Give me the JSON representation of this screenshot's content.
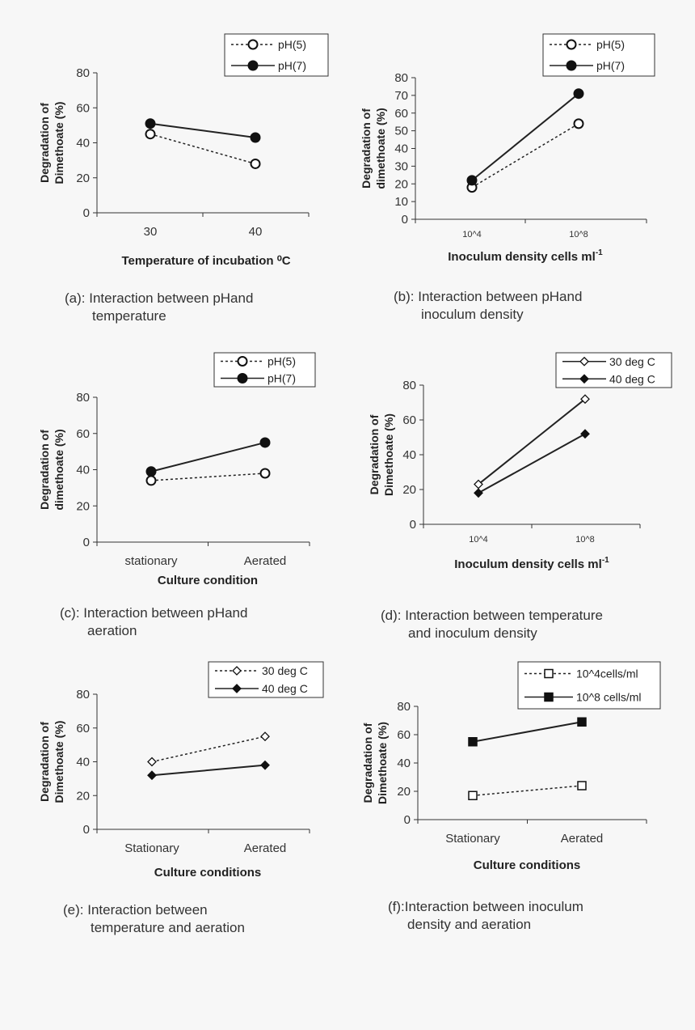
{
  "chart_data": [
    {
      "id": "a",
      "type": "line",
      "categories": [
        "30",
        "40"
      ],
      "series": [
        {
          "name": "pH(5)",
          "values": [
            45,
            28
          ],
          "style": "dashed",
          "marker": "circle-open"
        },
        {
          "name": "pH(7)",
          "values": [
            51,
            43
          ],
          "style": "solid",
          "marker": "circle-filled"
        }
      ],
      "ylabel": [
        "Degradation of",
        "Dimethoate (%)"
      ],
      "xlabel": "Temperature of incubation ⁰C",
      "ylim": [
        0,
        80
      ],
      "yticks": [
        0,
        20,
        40,
        60,
        80
      ],
      "caption": [
        "(a): Interaction between pHand",
        "temperature"
      ]
    },
    {
      "id": "b",
      "type": "line",
      "categories": [
        "10^4",
        "10^8"
      ],
      "series": [
        {
          "name": "pH(5)",
          "values": [
            18,
            54
          ],
          "style": "dashed",
          "marker": "circle-open"
        },
        {
          "name": "pH(7)",
          "values": [
            22,
            71
          ],
          "style": "solid",
          "marker": "circle-filled"
        }
      ],
      "ylabel": [
        "Degradation of",
        "dimethoate (%)"
      ],
      "xlabel": "Inoculum density cells ml",
      "xlabel_sup": "-1",
      "ylim": [
        0,
        80
      ],
      "yticks": [
        0,
        10,
        20,
        30,
        40,
        50,
        60,
        70,
        80
      ],
      "caption": [
        "(b): Interaction between pHand",
        "inoculum density"
      ]
    },
    {
      "id": "c",
      "type": "line",
      "categories": [
        "stationary",
        "Aerated"
      ],
      "series": [
        {
          "name": "pH(5)",
          "values": [
            34,
            38
          ],
          "style": "dashed",
          "marker": "circle-open"
        },
        {
          "name": "pH(7)",
          "values": [
            39,
            55
          ],
          "style": "solid",
          "marker": "circle-filled"
        }
      ],
      "ylabel": [
        "Degradation of",
        "dimethoate (%)"
      ],
      "xlabel": "Culture condition",
      "ylim": [
        0,
        80
      ],
      "yticks": [
        0,
        20,
        40,
        60,
        80
      ],
      "caption": [
        "(c): Interaction between pHand",
        "aeration"
      ]
    },
    {
      "id": "d",
      "type": "line",
      "categories": [
        "10^4",
        "10^8"
      ],
      "series": [
        {
          "name": "30 deg C",
          "values": [
            23,
            72
          ],
          "style": "solid",
          "marker": "diamond-open"
        },
        {
          "name": "40 deg C",
          "values": [
            18,
            52
          ],
          "style": "solid",
          "marker": "diamond-filled"
        }
      ],
      "ylabel": [
        "Degradation of",
        "Dimethoate (%)"
      ],
      "xlabel": "Inoculum density cells ml",
      "xlabel_sup": "-1",
      "ylim": [
        0,
        80
      ],
      "yticks": [
        0,
        20,
        40,
        60,
        80
      ],
      "caption": [
        "(d): Interaction between temperature",
        "and inoculum density"
      ]
    },
    {
      "id": "e",
      "type": "line",
      "categories": [
        "Stationary",
        "Aerated"
      ],
      "series": [
        {
          "name": "30 deg C",
          "values": [
            40,
            55
          ],
          "style": "dashed",
          "marker": "diamond-open"
        },
        {
          "name": "40 deg C",
          "values": [
            32,
            38
          ],
          "style": "solid",
          "marker": "diamond-filled"
        }
      ],
      "ylabel": [
        "Degradation of",
        "Dimethoate (%)"
      ],
      "xlabel": "Culture conditions",
      "ylim": [
        0,
        80
      ],
      "yticks": [
        0,
        20,
        40,
        60,
        80
      ],
      "caption": [
        "(e): Interaction between",
        "temperature and aeration"
      ]
    },
    {
      "id": "f",
      "type": "line",
      "categories": [
        "Stationary",
        "Aerated"
      ],
      "series": [
        {
          "name": "10^4cells/ml",
          "values": [
            17,
            24
          ],
          "style": "dashed",
          "marker": "square-open"
        },
        {
          "name": "10^8 cells/ml",
          "values": [
            55,
            69
          ],
          "style": "solid",
          "marker": "square-filled"
        }
      ],
      "ylabel": [
        "Degradation of",
        "Dimethoate (%)"
      ],
      "xlabel": "Culture conditions",
      "ylim": [
        0,
        80
      ],
      "yticks": [
        0,
        20,
        40,
        60,
        80
      ],
      "caption": [
        "(f):Interaction between inoculum",
        "density and aeration"
      ]
    }
  ]
}
